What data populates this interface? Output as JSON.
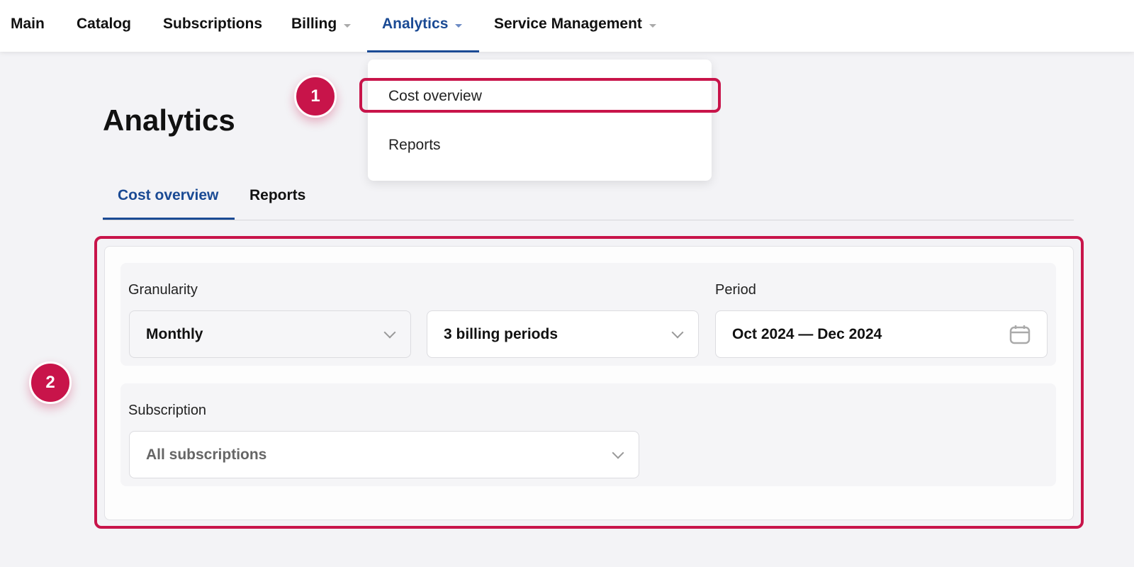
{
  "nav": {
    "items": [
      {
        "label": "Main"
      },
      {
        "label": "Catalog"
      },
      {
        "label": "Subscriptions"
      },
      {
        "label": "Billing"
      },
      {
        "label": "Analytics"
      },
      {
        "label": "Service Management"
      }
    ]
  },
  "dropdown": {
    "items": [
      {
        "label": "Cost overview"
      },
      {
        "label": "Reports"
      }
    ]
  },
  "page": {
    "title": "Analytics",
    "tabs": [
      {
        "label": "Cost overview"
      },
      {
        "label": "Reports"
      }
    ]
  },
  "filters": {
    "granularity_label": "Granularity",
    "granularity_value": "Monthly",
    "periods_value": "3 billing periods",
    "period_label": "Period",
    "period_value": "Oct 2024 — Dec 2024",
    "subscription_label": "Subscription",
    "subscription_placeholder": "All subscriptions"
  },
  "annotations": {
    "badge1": "1",
    "badge2": "2"
  },
  "colors": {
    "accent": "#1a4a94",
    "highlight": "#c8144a"
  }
}
